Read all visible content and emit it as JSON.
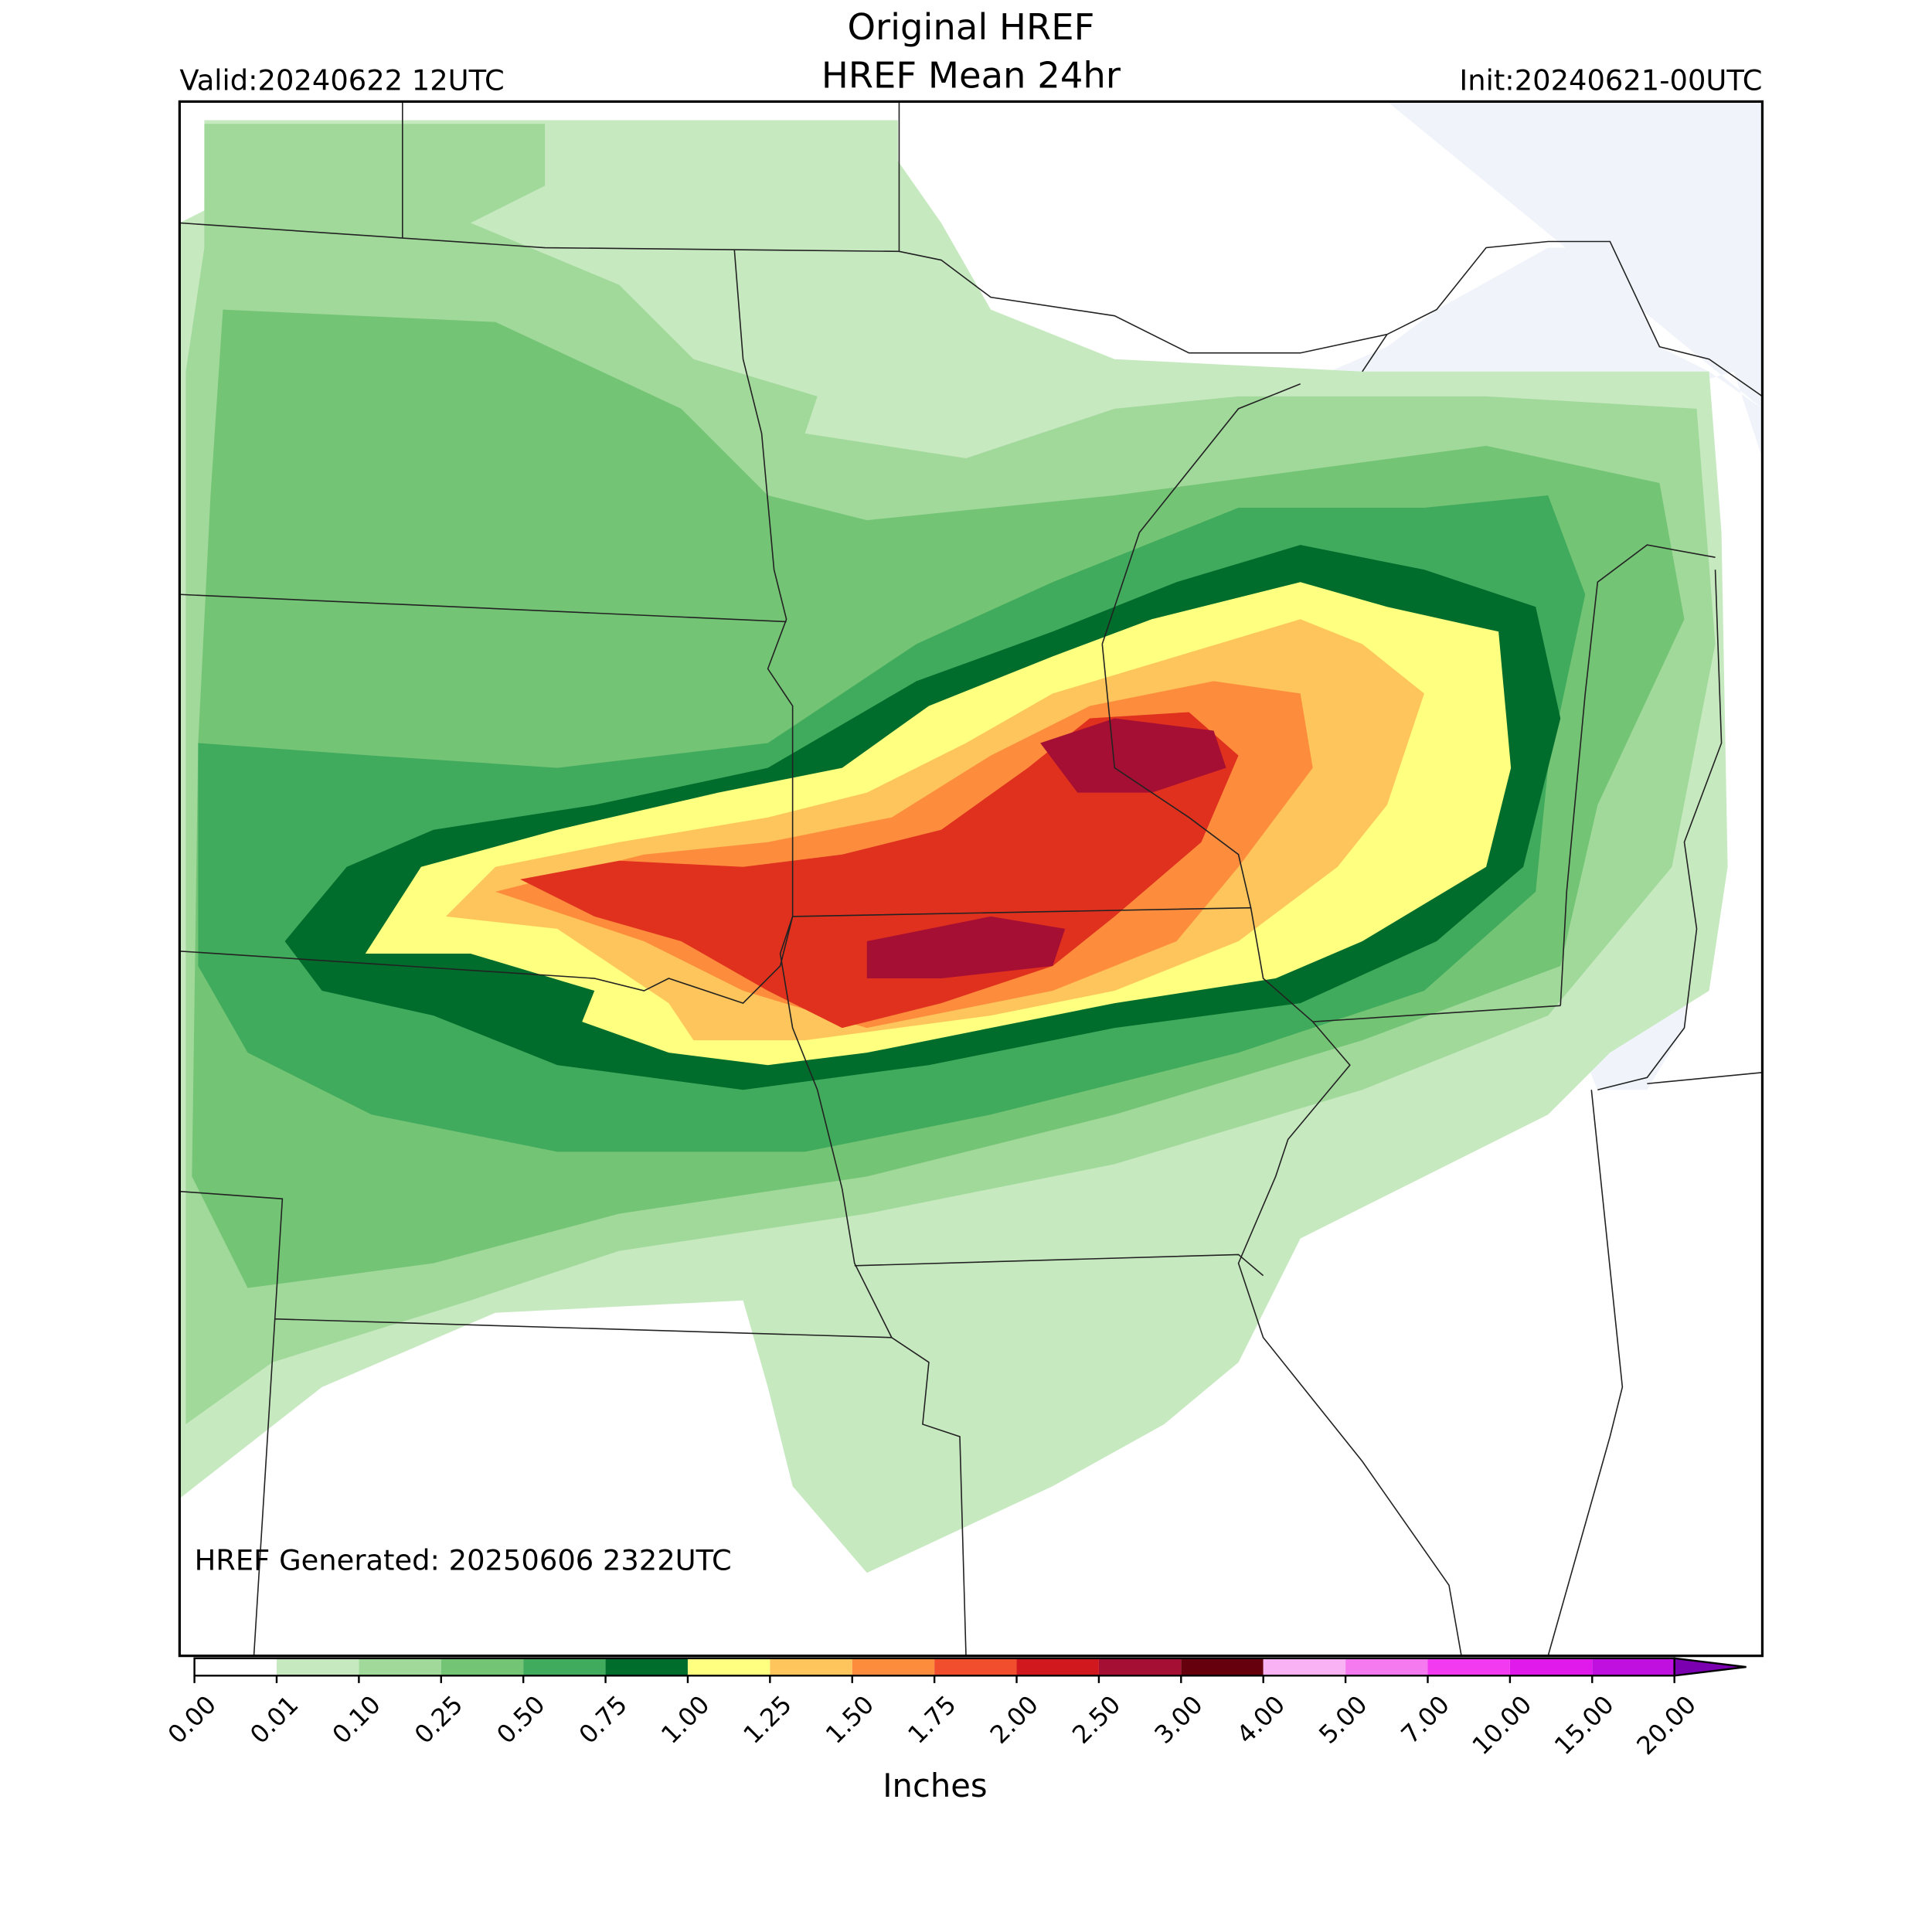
{
  "header": {
    "title_line1": "Original HREF",
    "title_line2": "HREF Mean 24hr",
    "valid": "Valid:20240622 12UTC",
    "init": "Init:20240621-00UTC"
  },
  "footer_note": "HREF Generated: 20250606 2322UTC",
  "colorbar": {
    "label": "Inches",
    "ticks": [
      {
        "value": 0,
        "label": "0.00"
      },
      {
        "value": 0.01,
        "label": "0.01"
      },
      {
        "value": 0.1,
        "label": "0.10"
      },
      {
        "value": 0.25,
        "label": "0.25"
      },
      {
        "value": 0.5,
        "label": "0.50"
      },
      {
        "value": 0.75,
        "label": "0.75"
      },
      {
        "value": 1,
        "label": "1.00"
      },
      {
        "value": 1.25,
        "label": "1.25"
      },
      {
        "value": 1.5,
        "label": "1.50"
      },
      {
        "value": 1.75,
        "label": "1.75"
      },
      {
        "value": 2,
        "label": "2.00"
      },
      {
        "value": 2.5,
        "label": "2.50"
      },
      {
        "value": 3,
        "label": "3.00"
      },
      {
        "value": 4,
        "label": "4.00"
      },
      {
        "value": 5,
        "label": "5.00"
      },
      {
        "value": 7,
        "label": "7.00"
      },
      {
        "value": 10,
        "label": "10.00"
      },
      {
        "value": 15,
        "label": "15.00"
      },
      {
        "value": 20,
        "label": "20.00"
      }
    ],
    "colors": [
      "#ffffff",
      "#c7e9c0",
      "#a1d99b",
      "#74c476",
      "#41ab5d",
      "#006d2c",
      "#ffff80",
      "#fdc55b",
      "#fd8d3c",
      "#f04e2d",
      "#d0181e",
      "#a50f34",
      "#67000d",
      "#f9b3f4",
      "#f57af0",
      "#f23bf0",
      "#e01aeb",
      "#c010e0"
    ],
    "over_color": "#7a00b0"
  }
}
